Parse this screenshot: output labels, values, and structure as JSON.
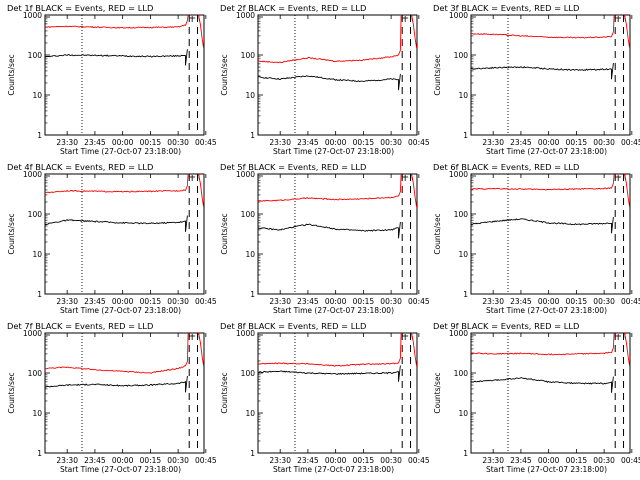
{
  "common": {
    "ylabel": "Counts/sec",
    "xlabel": "Start Time (27-Oct-07 23:18:00)",
    "xticks": [
      "23:30",
      "23:45",
      "00:00",
      "00:15",
      "00:30",
      "00:45"
    ],
    "yticks": [
      "1",
      "10",
      "100",
      "1000"
    ],
    "y_scale": "log",
    "ylim": [
      1,
      1000
    ],
    "colors": {
      "events": "#000000",
      "lld": "#ff0000"
    }
  },
  "chart_data": [
    {
      "type": "line",
      "title": "Det 1f BLACK = Events, RED = LLD",
      "series": [
        {
          "name": "Events",
          "color": "#000000",
          "x": [
            "23:18",
            "23:30",
            "23:45",
            "00:00",
            "00:15",
            "00:30",
            "00:34"
          ],
          "values": [
            90,
            100,
            98,
            95,
            92,
            95,
            100
          ]
        },
        {
          "name": "LLD",
          "color": "#ff0000",
          "x": [
            "23:18",
            "23:30",
            "23:45",
            "00:00",
            "00:15",
            "00:30",
            "00:34"
          ],
          "values": [
            500,
            520,
            500,
            480,
            490,
            500,
            560
          ]
        }
      ]
    },
    {
      "type": "line",
      "title": "Det 2f BLACK = Events, RED = LLD",
      "series": [
        {
          "name": "Events",
          "color": "#000000",
          "x": [
            "23:18",
            "23:30",
            "23:45",
            "00:00",
            "00:15",
            "00:30",
            "00:34"
          ],
          "values": [
            28,
            25,
            30,
            24,
            22,
            25,
            24
          ]
        },
        {
          "name": "LLD",
          "color": "#ff0000",
          "x": [
            "23:18",
            "23:30",
            "23:45",
            "00:00",
            "00:15",
            "00:30",
            "00:34"
          ],
          "values": [
            70,
            65,
            85,
            70,
            75,
            90,
            100
          ]
        }
      ]
    },
    {
      "type": "line",
      "title": "Det 3f BLACK = Events, RED = LLD",
      "series": [
        {
          "name": "Events",
          "color": "#000000",
          "x": [
            "23:18",
            "23:30",
            "23:45",
            "00:00",
            "00:15",
            "00:30",
            "00:34"
          ],
          "values": [
            45,
            48,
            50,
            45,
            42,
            44,
            45
          ]
        },
        {
          "name": "LLD",
          "color": "#ff0000",
          "x": [
            "23:18",
            "23:30",
            "23:45",
            "00:00",
            "00:15",
            "00:30",
            "00:34"
          ],
          "values": [
            340,
            330,
            300,
            280,
            270,
            280,
            290
          ]
        }
      ]
    },
    {
      "type": "line",
      "title": "Det 4f BLACK = Events, RED = LLD",
      "series": [
        {
          "name": "Events",
          "color": "#000000",
          "x": [
            "23:18",
            "23:30",
            "23:45",
            "00:00",
            "00:15",
            "00:30",
            "00:34"
          ],
          "values": [
            55,
            70,
            65,
            60,
            58,
            62,
            65
          ]
        },
        {
          "name": "LLD",
          "color": "#ff0000",
          "x": [
            "23:18",
            "23:30",
            "23:45",
            "00:00",
            "00:15",
            "00:30",
            "00:34"
          ],
          "values": [
            340,
            380,
            370,
            360,
            370,
            380,
            400
          ]
        }
      ]
    },
    {
      "type": "line",
      "title": "Det 5f BLACK = Events, RED = LLD",
      "series": [
        {
          "name": "Events",
          "color": "#000000",
          "x": [
            "23:18",
            "23:30",
            "23:45",
            "00:00",
            "00:15",
            "00:30",
            "00:34"
          ],
          "values": [
            45,
            40,
            55,
            42,
            38,
            40,
            45
          ]
        },
        {
          "name": "LLD",
          "color": "#ff0000",
          "x": [
            "23:18",
            "23:30",
            "23:45",
            "00:00",
            "00:15",
            "00:30",
            "00:34"
          ],
          "values": [
            210,
            220,
            250,
            230,
            240,
            260,
            280
          ]
        }
      ]
    },
    {
      "type": "line",
      "title": "Det 6f BLACK = Events, RED = LLD",
      "series": [
        {
          "name": "Events",
          "color": "#000000",
          "x": [
            "23:18",
            "23:30",
            "23:45",
            "00:00",
            "00:15",
            "00:30",
            "00:34"
          ],
          "values": [
            55,
            65,
            75,
            60,
            55,
            58,
            60
          ]
        },
        {
          "name": "LLD",
          "color": "#ff0000",
          "x": [
            "23:18",
            "23:30",
            "23:45",
            "00:00",
            "00:15",
            "00:30",
            "00:34"
          ],
          "values": [
            420,
            430,
            420,
            410,
            420,
            430,
            450
          ]
        }
      ]
    },
    {
      "type": "line",
      "title": "Det 7f BLACK = Events, RED = LLD",
      "series": [
        {
          "name": "Events",
          "color": "#000000",
          "x": [
            "23:18",
            "23:30",
            "23:45",
            "00:00",
            "00:15",
            "00:30",
            "00:34"
          ],
          "values": [
            45,
            50,
            52,
            48,
            50,
            55,
            60
          ]
        },
        {
          "name": "LLD",
          "color": "#ff0000",
          "x": [
            "23:18",
            "23:30",
            "23:45",
            "00:00",
            "00:15",
            "00:30",
            "00:34"
          ],
          "values": [
            130,
            140,
            120,
            110,
            100,
            130,
            150
          ]
        }
      ]
    },
    {
      "type": "line",
      "title": "Det 8f BLACK = Events, RED = LLD",
      "series": [
        {
          "name": "Events",
          "color": "#000000",
          "x": [
            "23:18",
            "23:30",
            "23:45",
            "00:00",
            "00:15",
            "00:30",
            "00:34"
          ],
          "values": [
            105,
            110,
            100,
            95,
            98,
            100,
            110
          ]
        },
        {
          "name": "LLD",
          "color": "#ff0000",
          "x": [
            "23:18",
            "23:30",
            "23:45",
            "00:00",
            "00:15",
            "00:30",
            "00:34"
          ],
          "values": [
            170,
            175,
            170,
            150,
            165,
            170,
            180
          ]
        }
      ]
    },
    {
      "type": "line",
      "title": "Det 9f BLACK = Events, RED = LLD",
      "series": [
        {
          "name": "Events",
          "color": "#000000",
          "x": [
            "23:18",
            "23:30",
            "23:45",
            "00:00",
            "00:15",
            "00:30",
            "00:34"
          ],
          "values": [
            60,
            65,
            75,
            60,
            55,
            55,
            58
          ]
        },
        {
          "name": "LLD",
          "color": "#ff0000",
          "x": [
            "23:18",
            "23:30",
            "23:45",
            "00:00",
            "00:15",
            "00:30",
            "00:34"
          ],
          "values": [
            320,
            300,
            310,
            290,
            300,
            310,
            330
          ]
        }
      ]
    }
  ]
}
